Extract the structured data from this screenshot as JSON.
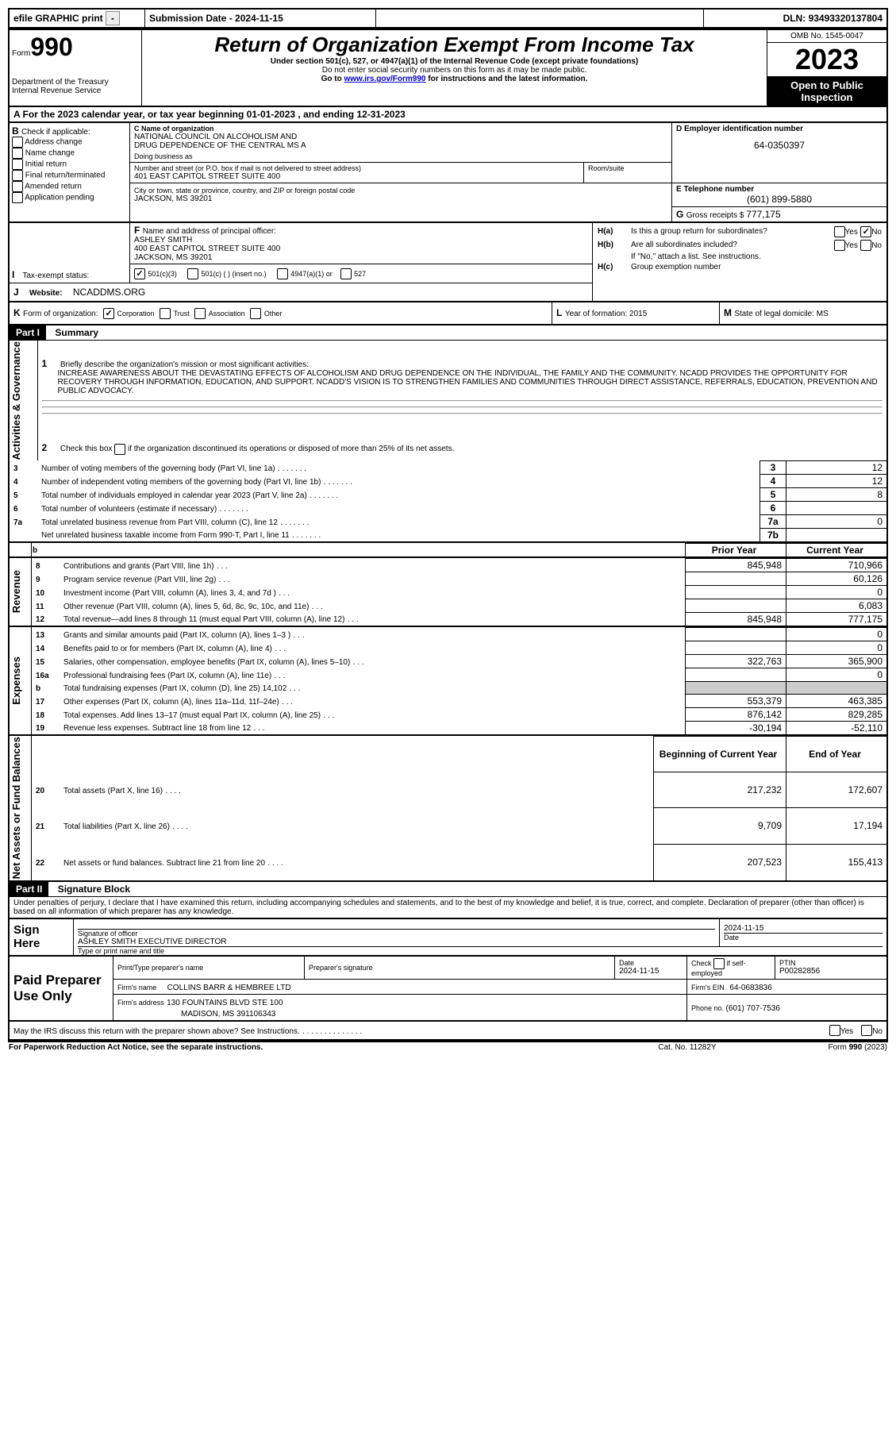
{
  "header": {
    "efile": "efile GRAPHIC print",
    "sub_date_label": "Submission Date - ",
    "sub_date": "2024-11-15",
    "dln_label": "DLN: ",
    "dln": "93493320137804"
  },
  "title_block": {
    "form_label": "Form",
    "form_num": "990",
    "dept": "Department of the Treasury",
    "irs": "Internal Revenue Service",
    "title": "Return of Organization Exempt From Income Tax",
    "sub1": "Under section 501(c), 527, or 4947(a)(1) of the Internal Revenue Code (except private foundations)",
    "sub2": "Do not enter social security numbers on this form as it may be made public.",
    "sub3_pre": "Go to ",
    "sub3_link": "www.irs.gov/Form990",
    "sub3_post": " for instructions and the latest information.",
    "omb_label": "OMB No. ",
    "omb": "1545-0047",
    "year": "2023",
    "inspection": "Open to Public Inspection"
  },
  "sectionA": {
    "label": "A For the 2023 calendar year, or tax year beginning ",
    "begin": "01-01-2023",
    "mid": " , and ending ",
    "end": "12-31-2023"
  },
  "sectionB": {
    "label": "B",
    "check_label": "Check if applicable:",
    "items": [
      "Address change",
      "Name change",
      "Initial return",
      "Final return/terminated",
      "Amended return",
      "Application pending"
    ]
  },
  "sectionC": {
    "name_label": "C Name of organization",
    "name1": "NATIONAL COUNCIL ON ALCOHOLISM AND",
    "name2": "DRUG DEPENDENCE OF THE CENTRAL MS A",
    "dba_label": "Doing business as",
    "street_label": "Number and street (or P.O. box if mail is not delivered to street address)",
    "street": "401 EAST CAPITOL STREET SUITE 400",
    "room_label": "Room/suite",
    "city_label": "City or town, state or province, country, and ZIP or foreign postal code",
    "city": "JACKSON, MS  39201"
  },
  "sectionD": {
    "label": "D Employer identification number",
    "value": "64-0350397"
  },
  "sectionE": {
    "label": "E Telephone number",
    "value": "(601) 899-5880"
  },
  "sectionG": {
    "label": "G",
    "text": "Gross receipts $ ",
    "value": "777,175"
  },
  "sectionF": {
    "label": "F",
    "text": "Name and address of principal officer:",
    "name": "ASHLEY SMITH",
    "addr1": "400 EAST CAPITOL STREET SUITE 400",
    "addr2": "JACKSON, MS  39201"
  },
  "sectionH": {
    "ha": "Is this a group return for subordinates?",
    "hb": "Are all subordinates included?",
    "hb_note": "If \"No,\" attach a list. See instructions.",
    "hc": "Group exemption number",
    "yes": "Yes",
    "no": "No"
  },
  "sectionI": {
    "label": "I",
    "text": "Tax-exempt status:",
    "opt1": "501(c)(3)",
    "opt2": "501(c) (  ) (insert no.)",
    "opt3": "4947(a)(1) or",
    "opt4": "527"
  },
  "sectionJ": {
    "label": "J",
    "text": "Website:",
    "value": "NCADDMS.ORG"
  },
  "sectionK": {
    "label": "K",
    "text": "Form of organization:",
    "opts": [
      "Corporation",
      "Trust",
      "Association",
      "Other"
    ]
  },
  "sectionL": {
    "label": "L",
    "text": "Year of formation: ",
    "value": "2015"
  },
  "sectionM": {
    "label": "M",
    "text": "State of legal domicile: ",
    "value": "MS"
  },
  "part1": {
    "header": "Part I",
    "title": "Summary",
    "q1_label": "1",
    "q1_text": "Briefly describe the organization's mission or most significant activities:",
    "q1_val": "INCREASE AWARENESS ABOUT THE DEVASTATING EFFECTS OF ALCOHOLISM AND DRUG DEPENDENCE ON THE INDIVIDUAL, THE FAMILY AND THE COMMUNITY. NCADD PROVIDES THE OPPORTUNITY FOR RECOVERY THROUGH INFORMATION, EDUCATION, AND SUPPORT. NCADD'S VISION IS TO STRENGTHEN FAMILIES AND COMMUNITIES THROUGH DIRECT ASSISTANCE, REFERRALS, EDUCATION, PREVENTION AND PUBLIC ADVOCACY.",
    "q2_label": "2",
    "q2_text": "Check this box         if the organization discontinued its operations or disposed of more than 25% of its net assets.",
    "sidelabels": {
      "activities": "Activities & Governance",
      "revenue": "Revenue",
      "expenses": "Expenses",
      "netassets": "Net Assets or Fund Balances"
    },
    "col_headers": {
      "prior": "Prior Year",
      "current": "Current Year",
      "boy": "Beginning of Current Year",
      "eoy": "End of Year"
    },
    "rows_gov": [
      {
        "n": "3",
        "text": "Number of voting members of the governing body (Part VI, line 1a)",
        "box": "3",
        "val": "12"
      },
      {
        "n": "4",
        "text": "Number of independent voting members of the governing body (Part VI, line 1b)",
        "box": "4",
        "val": "12"
      },
      {
        "n": "5",
        "text": "Total number of individuals employed in calendar year 2023 (Part V, line 2a)",
        "box": "5",
        "val": "8"
      },
      {
        "n": "6",
        "text": "Total number of volunteers (estimate if necessary)",
        "box": "6",
        "val": ""
      },
      {
        "n": "7a",
        "text": "Total unrelated business revenue from Part VIII, column (C), line 12",
        "box": "7a",
        "val": "0"
      },
      {
        "n": "",
        "text": "Net unrelated business taxable income from Form 990-T, Part I, line 11",
        "box": "7b",
        "val": ""
      }
    ],
    "rows_rev": [
      {
        "n": "8",
        "text": "Contributions and grants (Part VIII, line 1h)",
        "prior": "845,948",
        "cur": "710,966"
      },
      {
        "n": "9",
        "text": "Program service revenue (Part VIII, line 2g)",
        "prior": "",
        "cur": "60,126"
      },
      {
        "n": "10",
        "text": "Investment income (Part VIII, column (A), lines 3, 4, and 7d )",
        "prior": "",
        "cur": "0"
      },
      {
        "n": "11",
        "text": "Other revenue (Part VIII, column (A), lines 5, 6d, 8c, 9c, 10c, and 11e)",
        "prior": "",
        "cur": "6,083"
      },
      {
        "n": "12",
        "text": "Total revenue—add lines 8 through 11 (must equal Part VIII, column (A), line 12)",
        "prior": "845,948",
        "cur": "777,175"
      }
    ],
    "rows_exp": [
      {
        "n": "13",
        "text": "Grants and similar amounts paid (Part IX, column (A), lines 1–3 )",
        "prior": "",
        "cur": "0"
      },
      {
        "n": "14",
        "text": "Benefits paid to or for members (Part IX, column (A), line 4)",
        "prior": "",
        "cur": "0"
      },
      {
        "n": "15",
        "text": "Salaries, other compensation, employee benefits (Part IX, column (A), lines 5–10)",
        "prior": "322,763",
        "cur": "365,900"
      },
      {
        "n": "16a",
        "text": "Professional fundraising fees (Part IX, column (A), line 11e)",
        "prior": "",
        "cur": "0"
      },
      {
        "n": "b",
        "text": "Total fundraising expenses (Part IX, column (D), line 25) 14,102",
        "prior": "SHADE",
        "cur": "SHADE"
      },
      {
        "n": "17",
        "text": "Other expenses (Part IX, column (A), lines 11a–11d, 11f–24e)",
        "prior": "553,379",
        "cur": "463,385"
      },
      {
        "n": "18",
        "text": "Total expenses. Add lines 13–17 (must equal Part IX, column (A), line 25)",
        "prior": "876,142",
        "cur": "829,285"
      },
      {
        "n": "19",
        "text": "Revenue less expenses. Subtract line 18 from line 12",
        "prior": "-30,194",
        "cur": "-52,110"
      }
    ],
    "rows_net": [
      {
        "n": "20",
        "text": "Total assets (Part X, line 16)",
        "prior": "217,232",
        "cur": "172,607"
      },
      {
        "n": "21",
        "text": "Total liabilities (Part X, line 26)",
        "prior": "9,709",
        "cur": "17,194"
      },
      {
        "n": "22",
        "text": "Net assets or fund balances. Subtract line 21 from line 20",
        "prior": "207,523",
        "cur": "155,413"
      }
    ]
  },
  "part2": {
    "header": "Part II",
    "title": "Signature Block",
    "decl": "Under penalties of perjury, I declare that I have examined this return, including accompanying schedules and statements, and to the best of my knowledge and belief, it is true, correct, and complete. Declaration of preparer (other than officer) is based on all information of which preparer has any knowledge.",
    "sign_here": "Sign Here",
    "sig_label": "Signature of officer",
    "sig_name": "ASHLEY SMITH  EXECUTIVE DIRECTOR",
    "sig_type_label": "Type or print name and title",
    "date_label": "Date",
    "date": "2024-11-15",
    "paid": "Paid Preparer Use Only",
    "prep_name_label": "Print/Type preparer's name",
    "prep_sig_label": "Preparer's signature",
    "prep_date": "2024-11-15",
    "check_label": "Check         if self-employed",
    "ptin_label": "PTIN",
    "ptin": "P00282856",
    "firm_name_label": "Firm's name",
    "firm_name": "COLLINS BARR & HEMBREE LTD",
    "firm_ein_label": "Firm's EIN",
    "firm_ein": "64-0683836",
    "firm_addr_label": "Firm's address",
    "firm_addr1": "130 FOUNTAINS BLVD STE 100",
    "firm_addr2": "MADISON, MS  391106343",
    "phone_label": "Phone no. ",
    "phone": "(601) 707-7536",
    "discuss": "May the IRS discuss this return with the preparer shown above? See Instructions.",
    "footer_left": "For Paperwork Reduction Act Notice, see the separate instructions.",
    "footer_mid": "Cat. No. 11282Y",
    "footer_right_pre": "Form ",
    "footer_right_b": "990",
    "footer_right_post": " (2023)"
  }
}
